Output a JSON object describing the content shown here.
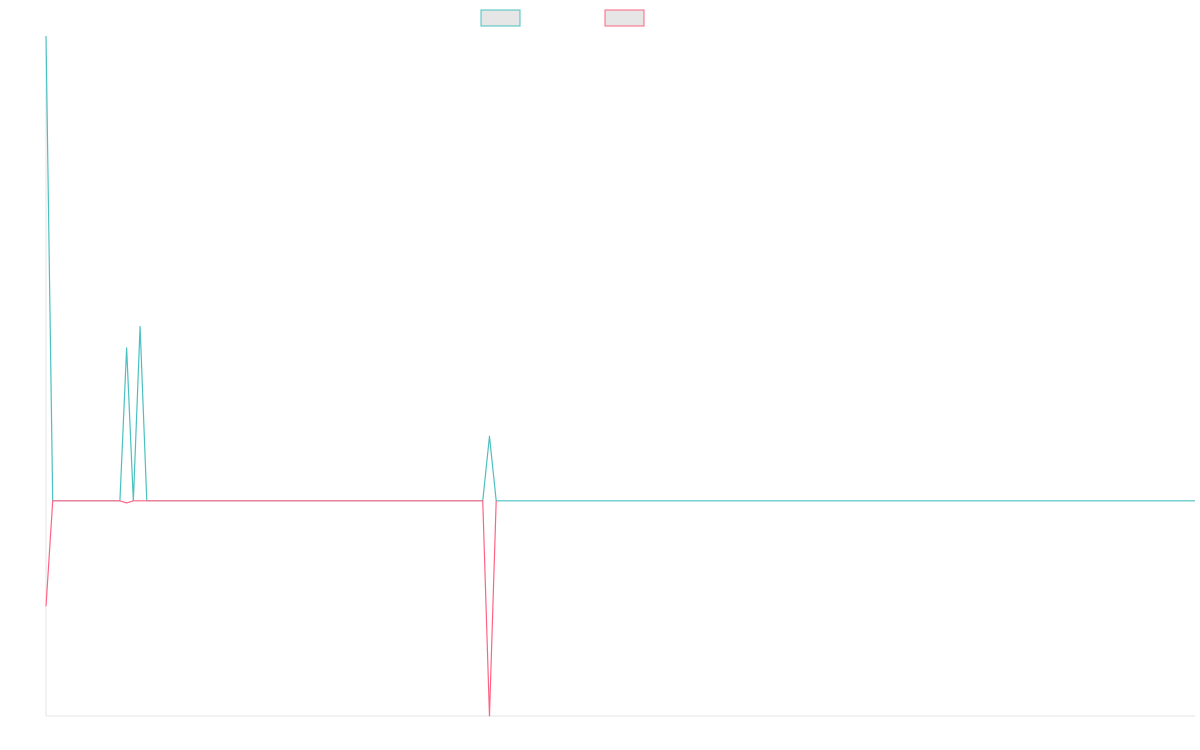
{
  "chart_data": {
    "type": "line",
    "x_count": 172,
    "ylim": [
      -1,
      2.16
    ],
    "grid": false,
    "legend": {
      "placement": "top-center",
      "entries": [
        {
          "label": "",
          "color": "#4bc0c0",
          "fill": "#e6e6e6"
        },
        {
          "label": "",
          "color": "#ff6384",
          "fill": "#e6e6e6"
        }
      ]
    },
    "series": [
      {
        "color": "#4bc0c0",
        "points": [
          [
            0,
            2.16
          ],
          [
            1,
            0
          ],
          [
            11,
            0
          ],
          [
            12,
            0.71
          ],
          [
            13,
            0
          ],
          [
            14,
            0.81
          ],
          [
            15,
            0
          ],
          [
            65,
            0
          ],
          [
            66,
            0.3
          ],
          [
            67,
            0
          ],
          [
            171,
            0
          ]
        ]
      },
      {
        "color": "#ff6384",
        "points": [
          [
            0,
            -0.49
          ],
          [
            1,
            0
          ],
          [
            11,
            0
          ],
          [
            12,
            -0.01
          ],
          [
            13,
            0
          ],
          [
            65,
            0
          ],
          [
            66,
            -1
          ],
          [
            67,
            0
          ]
        ]
      }
    ]
  }
}
